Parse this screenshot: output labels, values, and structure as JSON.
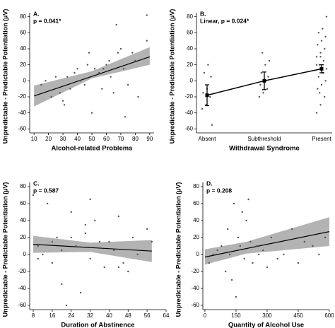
{
  "chart_data": [
    {
      "type": "scatter",
      "label": "A.",
      "annotation": "p = 0.041*",
      "x_label": "Alcohol-related Problems",
      "y_label": "Unpredictable - Predictable Potentiation (µV)",
      "xlim": [
        7,
        93
      ],
      "xticks": [
        10,
        20,
        30,
        40,
        50,
        60,
        70,
        80,
        90
      ],
      "ylim": [
        -65,
        85
      ],
      "yticks": [
        -60,
        -40,
        -20,
        0,
        20,
        40,
        60,
        80
      ],
      "color": "#555555",
      "band_color": "#a6a6a6",
      "x": [
        15,
        18,
        22,
        25,
        28,
        30,
        31,
        33,
        35,
        38,
        40,
        42,
        45,
        47,
        48,
        50,
        52,
        55,
        57,
        58,
        60,
        62,
        63,
        65,
        67,
        68,
        70,
        72,
        73,
        75,
        78,
        80,
        82,
        88,
        88
      ],
      "values": [
        -5,
        0,
        -20,
        5,
        -15,
        -25,
        -30,
        5,
        -10,
        10,
        15,
        0,
        -5,
        20,
        35,
        -40,
        15,
        10,
        -10,
        15,
        20,
        25,
        5,
        -15,
        70,
        35,
        40,
        15,
        -45,
        -5,
        35,
        25,
        -20,
        50,
        82
      ],
      "fit": {
        "x": [
          10,
          90
        ],
        "values": [
          -19,
          30
        ]
      },
      "band": {
        "x": [
          10,
          50,
          90
        ],
        "lower": [
          -32,
          3,
          20
        ],
        "upper": [
          -6,
          12,
          42
        ]
      }
    },
    {
      "type": "strip",
      "label": "B.",
      "annotation": "Linear, p = 0.024*",
      "x_label": "Withdrawal Syndrome",
      "y_label": "Unpredictable - Predictable Potentiation (µV)",
      "categories": [
        "Absent",
        "Subthreshold",
        "Present"
      ],
      "ylim": [
        -65,
        85
      ],
      "yticks": [
        -60,
        -40,
        -20,
        0,
        20,
        40,
        60,
        80
      ],
      "color": "#555555",
      "points": [
        [
          -35,
          -30,
          -20,
          -15,
          -10,
          5,
          10,
          20,
          -55
        ],
        [
          -20,
          -15,
          -10,
          -5,
          0,
          5,
          10,
          20,
          25,
          35
        ],
        [
          -40,
          -30,
          -20,
          -10,
          -5,
          0,
          5,
          10,
          15,
          20,
          25,
          30,
          35,
          40,
          45,
          50,
          55,
          60,
          65,
          80,
          -15,
          10,
          20,
          30
        ]
      ],
      "means": [
        -18,
        0,
        15
      ],
      "errors": [
        13,
        11,
        5
      ]
    },
    {
      "type": "scatter",
      "label": "C.",
      "annotation": "p = 0.587",
      "x_label": "Duration of Abstinence",
      "y_label": "Unpredictable - Predictable Potentiation (µV)",
      "xlim": [
        6.5,
        64
      ],
      "xticks": [
        8,
        16,
        24,
        32,
        40,
        48,
        56,
        64
      ],
      "ylim": [
        -65,
        85
      ],
      "yticks": [
        -60,
        -40,
        -20,
        0,
        20,
        40,
        60,
        80
      ],
      "color": "#555555",
      "band_color": "#a6a6a6",
      "x": [
        8,
        10,
        10,
        12,
        14,
        16,
        16,
        18,
        20,
        20,
        22,
        24,
        24,
        26,
        28,
        30,
        30,
        32,
        32,
        34,
        36,
        38,
        40,
        42,
        44,
        44,
        46,
        48,
        50,
        52,
        56,
        58
      ],
      "values": [
        70,
        10,
        -5,
        0,
        60,
        15,
        -10,
        20,
        5,
        -35,
        -60,
        50,
        20,
        10,
        -45,
        25,
        35,
        65,
        -5,
        40,
        15,
        -15,
        15,
        5,
        45,
        -15,
        -10,
        -20,
        20,
        0,
        30,
        15
      ],
      "fit": {
        "x": [
          8,
          58
        ],
        "values": [
          12,
          4
        ]
      },
      "band": {
        "x": [
          8,
          32,
          58
        ],
        "lower": [
          2,
          3,
          -9
        ],
        "upper": [
          22,
          14,
          17
        ]
      }
    },
    {
      "type": "scatter",
      "label": "D.",
      "annotation": "p = 0.208",
      "x_label": "Quantity of Alcohol Use",
      "y_label": "Unpredictable - Predictable Potentiation (µV)",
      "xlim": [
        -10,
        600
      ],
      "xticks": [
        0,
        150,
        300,
        450,
        600
      ],
      "ylim": [
        -65,
        85
      ],
      "yticks": [
        -60,
        -40,
        -20,
        0,
        20,
        40,
        60,
        80
      ],
      "color": "#555555",
      "band_color": "#a6a6a6",
      "x": [
        20,
        40,
        60,
        80,
        100,
        110,
        120,
        130,
        140,
        150,
        160,
        170,
        180,
        190,
        200,
        210,
        220,
        230,
        250,
        260,
        280,
        300,
        320,
        350,
        380,
        420,
        450,
        480,
        520,
        550,
        580
      ],
      "values": [
        -10,
        0,
        5,
        10,
        -20,
        30,
        0,
        -30,
        60,
        -50,
        20,
        10,
        50,
        -5,
        40,
        65,
        15,
        -10,
        10,
        0,
        5,
        -15,
        20,
        -5,
        0,
        30,
        -10,
        15,
        10,
        0,
        20
      ],
      "fit": {
        "x": [
          0,
          600
        ],
        "values": [
          -3,
          27
        ]
      },
      "band": {
        "x": [
          0,
          200,
          600
        ],
        "lower": [
          -12,
          1,
          10
        ],
        "upper": [
          6,
          15,
          44
        ]
      }
    }
  ]
}
